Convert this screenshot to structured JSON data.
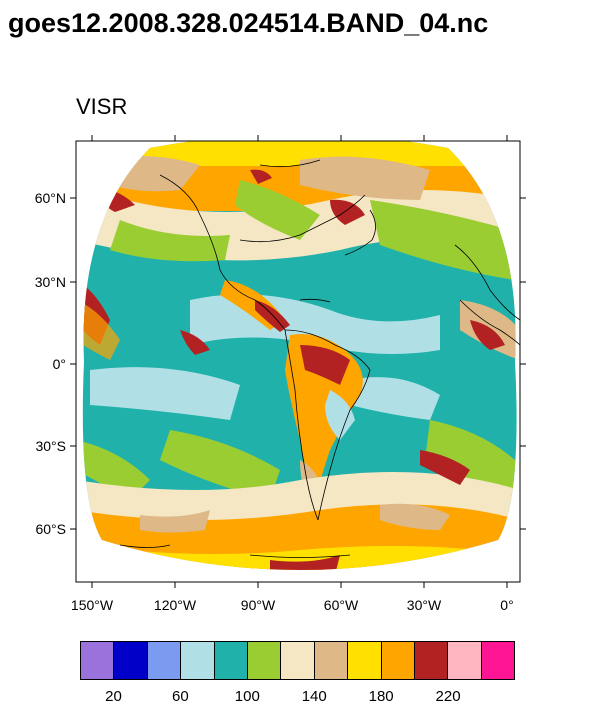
{
  "title": "goes12.2008.328.024514.BAND_04.nc",
  "subtitle": "VISR",
  "lat_ticks": [
    "60°N",
    "30°N",
    "0°",
    "30°S",
    "60°S"
  ],
  "lon_ticks": [
    "150°W",
    "120°W",
    "90°W",
    "60°W",
    "30°W",
    "0°"
  ],
  "colorbar": {
    "colors": [
      "#9b72db",
      "#0000c8",
      "#7a9bef",
      "#b0e0e6",
      "#20b2aa",
      "#9acd32",
      "#f5e6c4",
      "#deb887",
      "#ffe000",
      "#ffa500",
      "#b22222",
      "#ffb6c1",
      "#ff1493"
    ],
    "labels": [
      "20",
      "60",
      "100",
      "140",
      "180",
      "220"
    ]
  },
  "map_colors": {
    "ocean_teal": "#20b2aa",
    "cloud_light": "#b0e0e6",
    "green": "#9acd32",
    "wheat": "#f5e6c4",
    "tan": "#deb887",
    "yellow": "#ffe000",
    "orange": "#ffa500",
    "firebrick": "#b22222"
  }
}
